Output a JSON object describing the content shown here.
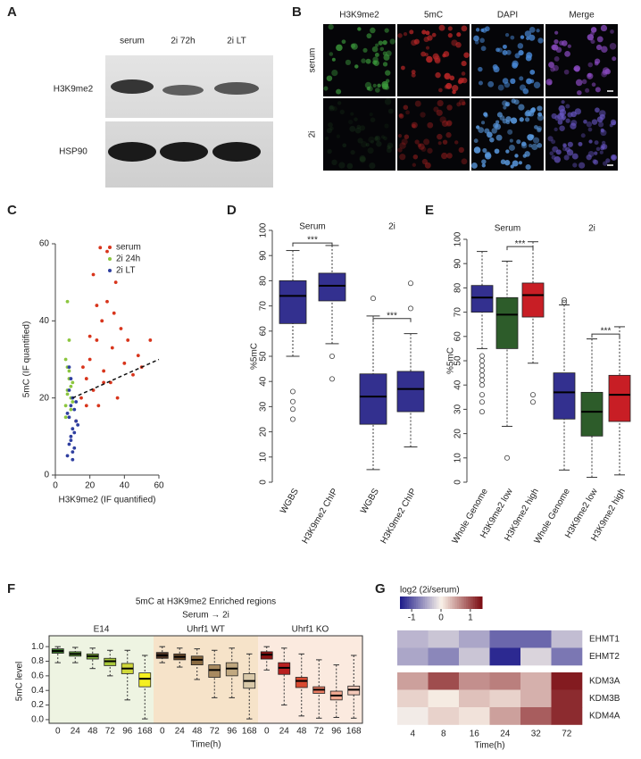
{
  "blot": {
    "panel": "A",
    "lanes": [
      "serum",
      "2i 72h",
      "2i LT"
    ],
    "rows": [
      "H3K9me2",
      "HSP90"
    ]
  },
  "microscopy": {
    "panel": "B",
    "columns": [
      "H3K9me2",
      "5mC",
      "DAPI",
      "Merge"
    ],
    "rows": [
      "serum",
      "2i"
    ]
  },
  "chart_data": [
    {
      "type": "scatter",
      "panel": "C",
      "xlabel": "H3K9me2 (IF quantified)",
      "ylabel": "5mC (IF quantified)",
      "xlim": [
        0,
        60
      ],
      "ylim": [
        0,
        60
      ],
      "xticks": [
        0,
        20,
        40,
        60
      ],
      "yticks": [
        0,
        20,
        40,
        60
      ],
      "series": [
        {
          "name": "serum",
          "color": "#d8351c",
          "x": [
            12,
            15,
            18,
            20,
            22,
            24,
            25,
            27,
            28,
            30,
            32,
            33,
            35,
            36,
            38,
            40,
            42,
            45,
            48,
            50,
            22,
            26,
            30,
            34,
            18,
            20,
            28,
            24,
            16,
            55
          ],
          "values": [
            14,
            20,
            25,
            30,
            22,
            35,
            18,
            40,
            27,
            45,
            24,
            33,
            50,
            20,
            38,
            29,
            35,
            26,
            31,
            28,
            52,
            59,
            58,
            42,
            18,
            36,
            24,
            44,
            28,
            35
          ]
        },
        {
          "name": "2i 24h",
          "color": "#8cc63f",
          "x": [
            6,
            7,
            8,
            7,
            9,
            6,
            8,
            10,
            7,
            9,
            8,
            6,
            7,
            9,
            10
          ],
          "values": [
            18,
            22,
            25,
            28,
            20,
            30,
            35,
            19,
            45,
            23,
            27,
            15,
            21,
            17,
            24
          ]
        },
        {
          "name": "2i LT",
          "color": "#2f3fa0",
          "x": [
            7,
            8,
            9,
            10,
            8,
            9,
            11,
            10,
            12,
            8,
            9,
            10,
            11,
            7,
            9,
            13,
            8,
            10,
            11,
            12
          ],
          "values": [
            5,
            8,
            10,
            12,
            15,
            18,
            7,
            20,
            14,
            22,
            25,
            4,
            11,
            16,
            9,
            13,
            28,
            6,
            17,
            19
          ]
        }
      ],
      "trend_line": {
        "x": [
          10,
          60
        ],
        "y": [
          20,
          30
        ]
      }
    },
    {
      "type": "box",
      "panel": "D",
      "ylabel": "%5mC",
      "ylim": [
        0,
        100
      ],
      "yticks": [
        0,
        10,
        20,
        30,
        40,
        50,
        60,
        70,
        80,
        90,
        100
      ],
      "groups": [
        {
          "name": "Serum",
          "significance": "***",
          "boxes": [
            {
              "label": "WGBS",
              "color": "#33308f",
              "min": 50,
              "q1": 63,
              "median": 74,
              "q3": 80,
              "max": 92,
              "outliers": [
                36,
                32,
                29,
                25
              ]
            },
            {
              "label": "H3K9me2 ChIP",
              "color": "#33308f",
              "min": 55,
              "q1": 72,
              "median": 78,
              "q3": 83,
              "max": 94,
              "outliers": [
                50,
                41
              ]
            }
          ]
        },
        {
          "name": "2i",
          "significance": "***",
          "boxes": [
            {
              "label": "WGBS",
              "color": "#33308f",
              "min": 5,
              "q1": 23,
              "median": 34,
              "q3": 43,
              "max": 66,
              "outliers": [
                73
              ]
            },
            {
              "label": "H3K9me2 ChIP",
              "color": "#33308f",
              "min": 14,
              "q1": 28,
              "median": 37,
              "q3": 44,
              "max": 59,
              "outliers": [
                69,
                79
              ]
            }
          ]
        }
      ]
    },
    {
      "type": "box",
      "panel": "E",
      "ylabel": "%5mC",
      "ylim": [
        0,
        100
      ],
      "yticks": [
        0,
        10,
        20,
        30,
        40,
        50,
        60,
        70,
        80,
        90,
        100
      ],
      "groups": [
        {
          "name": "Serum",
          "significance": "***",
          "boxes": [
            {
              "label": "Whole Genome",
              "color": "#33308f",
              "min": 55,
              "q1": 70,
              "median": 76,
              "q3": 81,
              "max": 95,
              "outliers": [
                52,
                50,
                48,
                46,
                44,
                42,
                40,
                36,
                33,
                29
              ]
            },
            {
              "label": "H3K9me2 low",
              "color": "#2d5c2a",
              "min": 23,
              "q1": 55,
              "median": 69,
              "q3": 76,
              "max": 91,
              "outliers": [
                10
              ]
            },
            {
              "label": "H3K9me2 high",
              "color": "#c81e25",
              "min": 49,
              "q1": 68,
              "median": 77,
              "q3": 82,
              "max": 99,
              "outliers": [
                36,
                33
              ]
            }
          ]
        },
        {
          "name": "2i",
          "significance": "***",
          "boxes": [
            {
              "label": "Whole Genome",
              "color": "#33308f",
              "min": 5,
              "q1": 26,
              "median": 37,
              "q3": 45,
              "max": 73,
              "outliers": [
                74,
                75
              ]
            },
            {
              "label": "H3K9me2 low",
              "color": "#2d5c2a",
              "min": 2,
              "q1": 19,
              "median": 29,
              "q3": 37,
              "max": 59,
              "outliers": []
            },
            {
              "label": "H3K9me2 high",
              "color": "#c81e25",
              "min": 3,
              "q1": 25,
              "median": 36,
              "q3": 44,
              "max": 64,
              "outliers": []
            }
          ]
        }
      ]
    },
    {
      "type": "box",
      "panel": "F",
      "title": "5mC at H3K9me2 Enriched regions",
      "subtitle": "Serum → 2i",
      "ylabel": "5mC level",
      "xlabel": "Time(h)",
      "ylim": [
        -0.05,
        1.1
      ],
      "yticks": [
        {
          "value": 0,
          "label": "0.0"
        },
        {
          "value": 0.2,
          "label": "0.2"
        },
        {
          "value": 0.4,
          "label": "0.4"
        },
        {
          "value": 0.6,
          "label": "0.6"
        },
        {
          "value": 0.8,
          "label": "0.8"
        },
        {
          "value": 1,
          "label": "1.0"
        }
      ],
      "groups": [
        {
          "name": "E14",
          "background": "#eef4e2",
          "boxes": [
            {
              "label": 0,
              "color": "#3a7a2a",
              "min": 0.78,
              "q1": 0.91,
              "median": 0.94,
              "q3": 0.97,
              "max": 1.0,
              "outliers": []
            },
            {
              "label": 24,
              "color": "#5e9a3a",
              "min": 0.78,
              "q1": 0.87,
              "median": 0.9,
              "q3": 0.93,
              "max": 0.99,
              "outliers": []
            },
            {
              "label": 48,
              "color": "#7fb03a",
              "min": 0.7,
              "q1": 0.83,
              "median": 0.87,
              "q3": 0.9,
              "max": 0.98,
              "outliers": []
            },
            {
              "label": 72,
              "color": "#a8c83a",
              "min": 0.6,
              "q1": 0.74,
              "median": 0.8,
              "q3": 0.84,
              "max": 0.95,
              "outliers": []
            },
            {
              "label": 96,
              "color": "#d0d83a",
              "min": 0.27,
              "q1": 0.63,
              "median": 0.7,
              "q3": 0.77,
              "max": 0.95,
              "outliers": []
            },
            {
              "label": 168,
              "color": "#f4ef20",
              "min": 0.01,
              "q1": 0.45,
              "median": 0.56,
              "q3": 0.64,
              "max": 0.88,
              "outliers": []
            }
          ]
        },
        {
          "name": "Uhrf1 WT",
          "background": "#f6e3c9",
          "boxes": [
            {
              "label": 0,
              "color": "#4a3020",
              "min": 0.78,
              "q1": 0.84,
              "median": 0.88,
              "q3": 0.92,
              "max": 1.0,
              "outliers": []
            },
            {
              "label": 24,
              "color": "#6b4a2a",
              "min": 0.72,
              "q1": 0.82,
              "median": 0.86,
              "q3": 0.9,
              "max": 0.98,
              "outliers": []
            },
            {
              "label": 48,
              "color": "#8a6a40",
              "min": 0.55,
              "q1": 0.75,
              "median": 0.82,
              "q3": 0.87,
              "max": 0.97,
              "outliers": []
            },
            {
              "label": 72,
              "color": "#a88a60",
              "min": 0.3,
              "q1": 0.58,
              "median": 0.68,
              "q3": 0.75,
              "max": 0.95,
              "outliers": []
            },
            {
              "label": 96,
              "color": "#c0a880",
              "min": 0.3,
              "q1": 0.6,
              "median": 0.7,
              "q3": 0.78,
              "max": 0.98,
              "outliers": []
            },
            {
              "label": 168,
              "color": "#d8c8a8",
              "min": 0.01,
              "q1": 0.43,
              "median": 0.53,
              "q3": 0.63,
              "max": 0.9,
              "outliers": []
            }
          ]
        },
        {
          "name": "Uhrf1 KO",
          "background": "#fbeadf",
          "boxes": [
            {
              "label": 0,
              "color": "#8a1010",
              "min": 0.68,
              "q1": 0.83,
              "median": 0.89,
              "q3": 0.93,
              "max": 1.0,
              "outliers": []
            },
            {
              "label": 24,
              "color": "#b82020",
              "min": 0.2,
              "q1": 0.62,
              "median": 0.71,
              "q3": 0.78,
              "max": 0.98,
              "outliers": []
            },
            {
              "label": 48,
              "color": "#d84a30",
              "min": 0.05,
              "q1": 0.44,
              "median": 0.53,
              "q3": 0.58,
              "max": 0.9,
              "outliers": []
            },
            {
              "label": 72,
              "color": "#e87a60",
              "min": 0.02,
              "q1": 0.36,
              "median": 0.41,
              "q3": 0.45,
              "max": 0.82,
              "outliers": []
            },
            {
              "label": 96,
              "color": "#f0a890",
              "min": 0.03,
              "q1": 0.27,
              "median": 0.33,
              "q3": 0.39,
              "max": 0.75,
              "outliers": []
            },
            {
              "label": 168,
              "color": "#f4c8b8",
              "min": 0.02,
              "q1": 0.34,
              "median": 0.41,
              "q3": 0.46,
              "max": 0.88,
              "outliers": []
            }
          ]
        }
      ]
    },
    {
      "type": "heatmap",
      "panel": "G",
      "legend_title": "log2 (2i/serum)",
      "colorbar_ticks": [
        -1,
        0,
        1
      ],
      "zlim": [
        -1.4,
        1.4
      ],
      "colors": [
        "#1c1a8a",
        "#faf3ea",
        "#7a0a10"
      ],
      "xlabel": "Time(h)",
      "rows": [
        "EHMT1",
        "EHMT2",
        "KDM3A",
        "KDM3B",
        "KDM4A"
      ],
      "columns": [
        4,
        8,
        16,
        24,
        32,
        72
      ],
      "values": [
        [
          -0.4,
          -0.3,
          -0.5,
          -0.9,
          -0.9,
          -0.35
        ],
        [
          -0.5,
          -0.7,
          -0.3,
          -1.3,
          -0.2,
          -0.8
        ],
        [
          0.5,
          1.0,
          0.6,
          0.7,
          0.4,
          1.3
        ],
        [
          0.2,
          0.05,
          0.3,
          0.2,
          0.4,
          1.2
        ],
        [
          -0.05,
          0.2,
          0.1,
          0.5,
          0.9,
          1.2
        ]
      ]
    }
  ]
}
